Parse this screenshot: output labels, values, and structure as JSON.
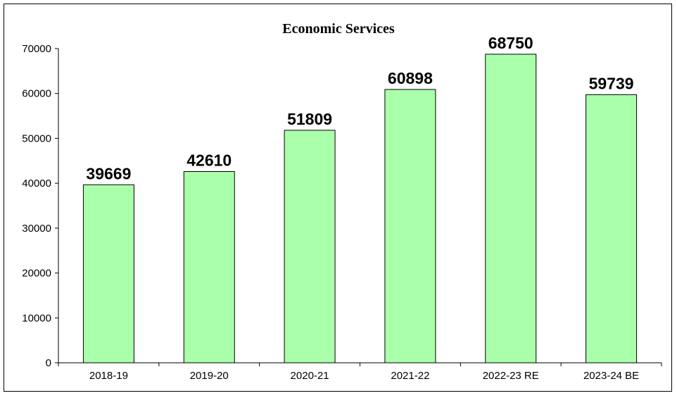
{
  "chart_data": {
    "type": "bar",
    "title": "Economic Services",
    "categories": [
      "2018-19",
      "2019-20",
      "2020-21",
      "2021-22",
      "2022-23 RE",
      "2023-24 BE"
    ],
    "values": [
      39669,
      42610,
      51809,
      60898,
      68750,
      59739
    ],
    "data_labels": [
      "39669",
      "42610",
      "51809",
      "60898",
      "68750",
      "59739"
    ],
    "y_ticks": [
      "0",
      "10000",
      "20000",
      "30000",
      "40000",
      "50000",
      "60000",
      "70000"
    ],
    "ylim": [
      0,
      70000
    ],
    "xlabel": "",
    "ylabel": "",
    "grid": false,
    "legend": "none",
    "colors": {
      "bar_fill": "#aaffaa",
      "bar_stroke": "#000000",
      "frame": "#000000"
    }
  }
}
